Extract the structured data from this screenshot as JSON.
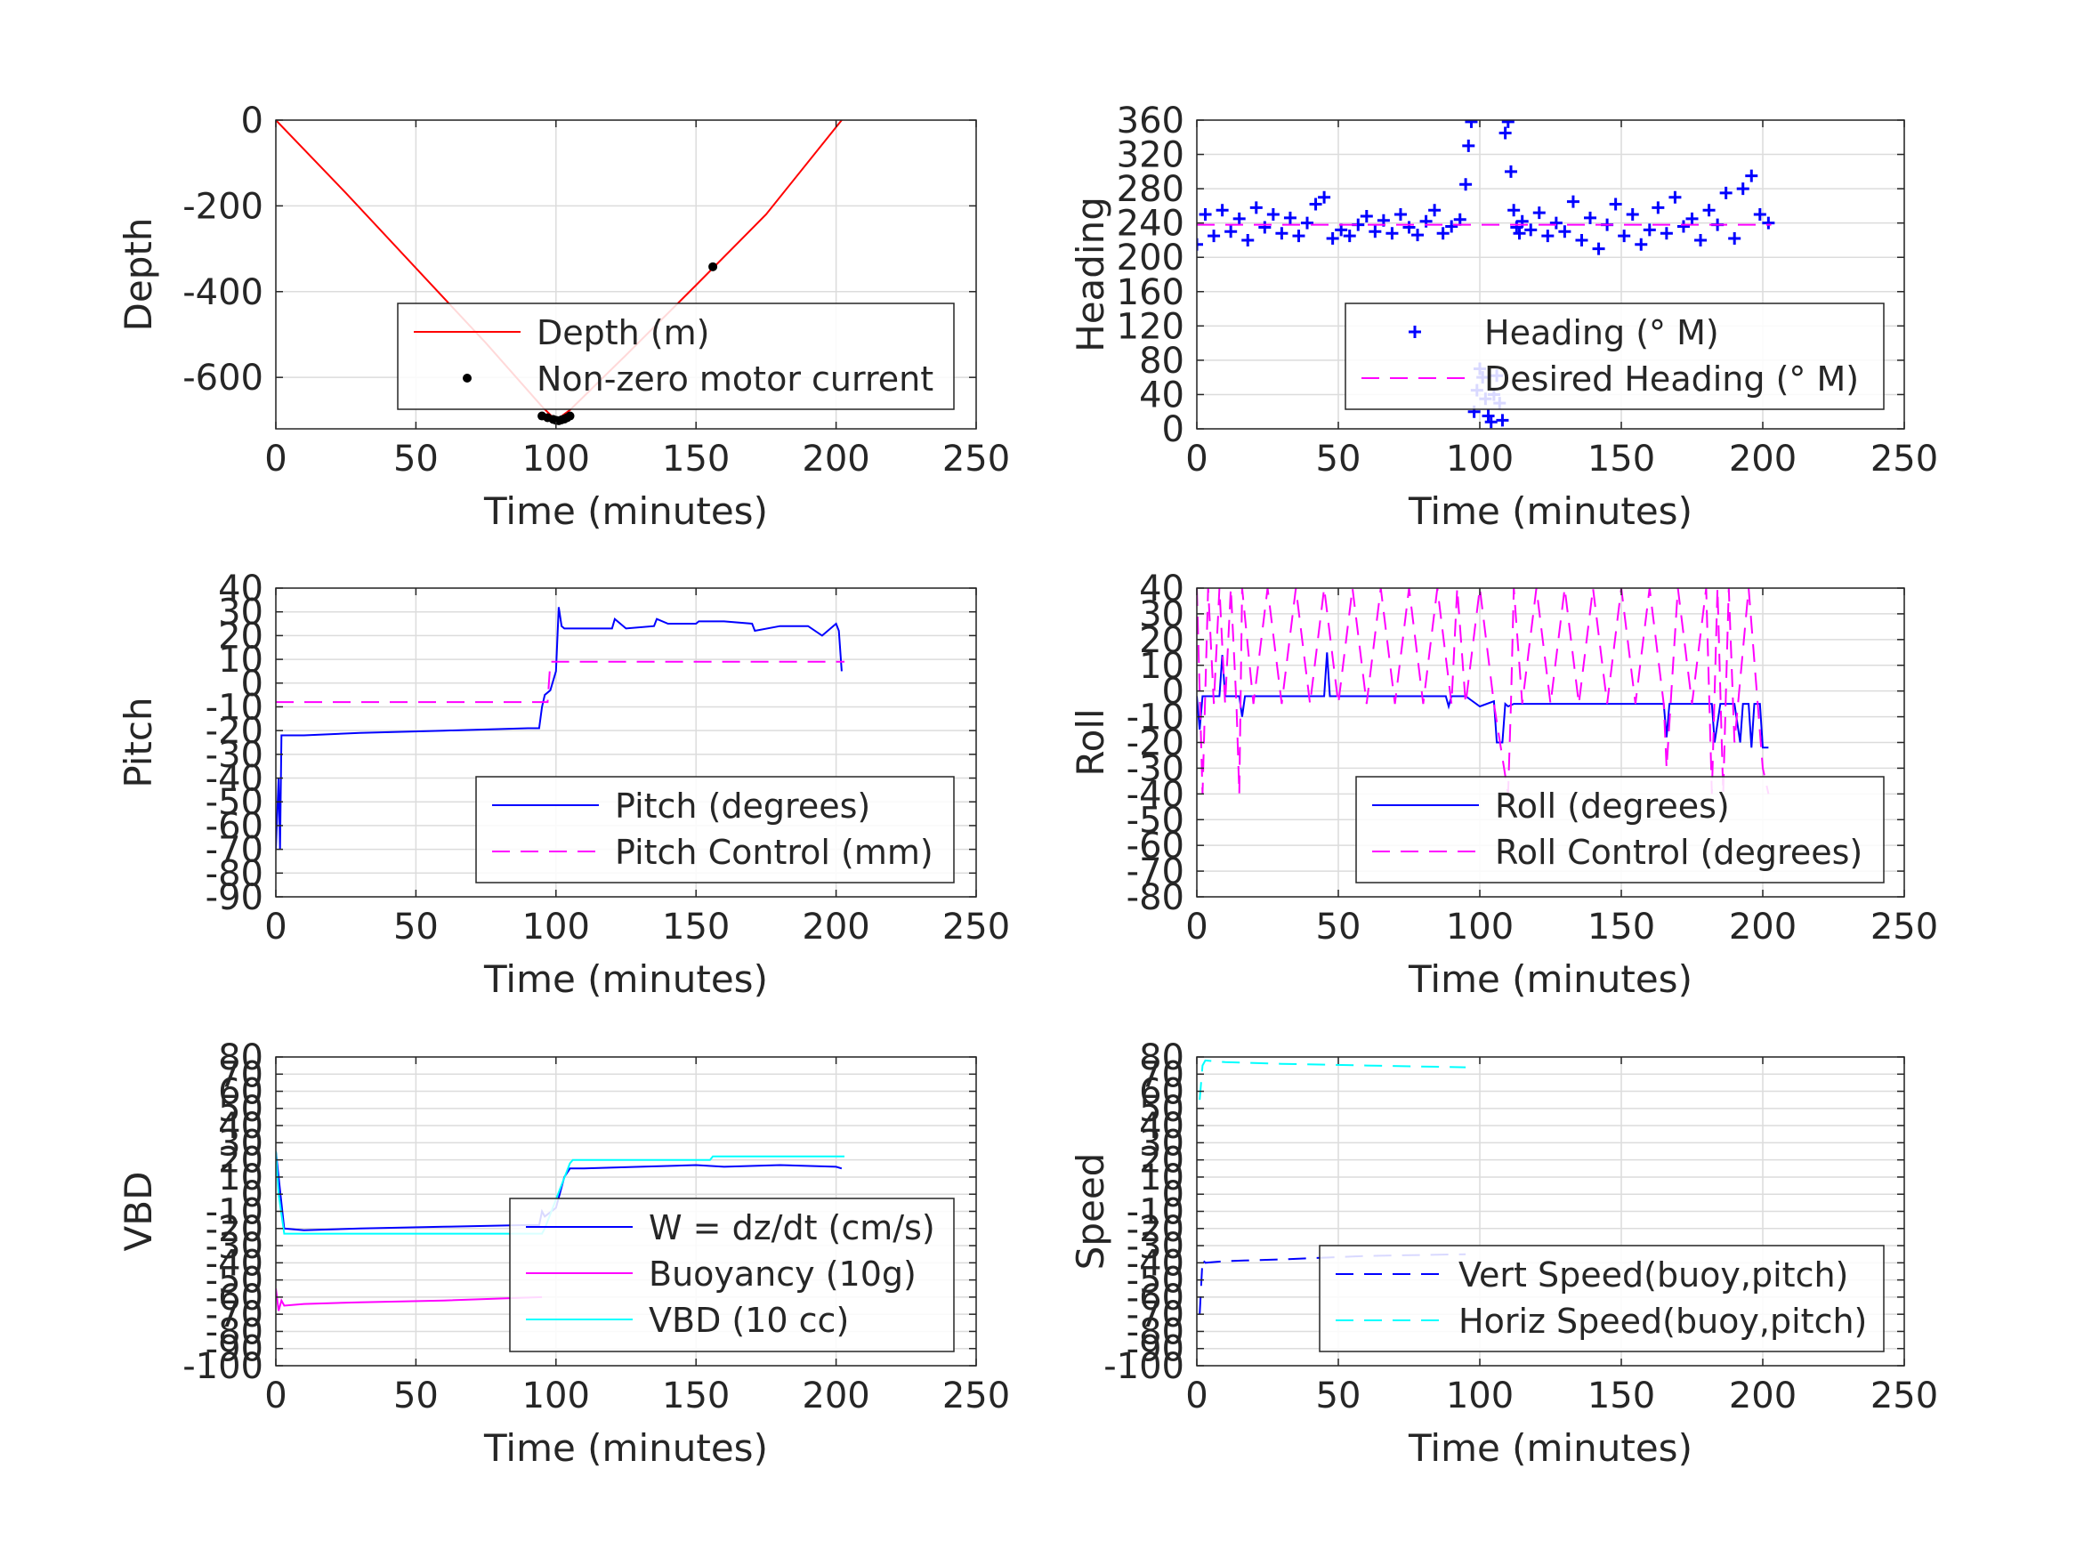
{
  "chart_data": [
    {
      "type": "line",
      "ylabel": "Depth",
      "xlabel": "Time (minutes)",
      "xlim": [
        0,
        250
      ],
      "ylim": [
        -720,
        0
      ],
      "xticks": [
        0,
        50,
        100,
        150,
        200,
        250
      ],
      "yticks": [
        0,
        -200,
        -400,
        -600
      ],
      "grid": true,
      "legend_position": "lower-right",
      "series": [
        {
          "name": "Depth (m)",
          "style": "solid",
          "color": "#ff0000",
          "x": [
            0,
            25,
            50,
            75,
            95,
            100,
            105,
            125,
            150,
            175,
            202
          ],
          "y": [
            0,
            -170,
            -345,
            -520,
            -668,
            -700,
            -676,
            -548,
            -385,
            -220,
            0
          ]
        },
        {
          "name": "Non-zero motor current",
          "style": "dots",
          "color": "#000000",
          "x": [
            95,
            97,
            99,
            100,
            101,
            102,
            103,
            104,
            105,
            156
          ],
          "y": [
            -690,
            -694,
            -698,
            -700,
            -701,
            -699,
            -697,
            -694,
            -690,
            -342
          ]
        }
      ]
    },
    {
      "type": "scatter",
      "ylabel": "Heading",
      "xlabel": "Time (minutes)",
      "xlim": [
        0,
        250
      ],
      "ylim": [
        0,
        360
      ],
      "xticks": [
        0,
        50,
        100,
        150,
        200,
        250
      ],
      "yticks": [
        0,
        40,
        80,
        120,
        160,
        200,
        240,
        280,
        320,
        360
      ],
      "grid": true,
      "legend_position": "lower-right",
      "series": [
        {
          "name": "Heading (° M)",
          "style": "plus",
          "color": "#0000ff",
          "x": [
            0,
            3,
            6,
            9,
            12,
            15,
            18,
            21,
            24,
            27,
            30,
            33,
            36,
            39,
            42,
            45,
            48,
            51,
            54,
            57,
            60,
            63,
            66,
            69,
            72,
            75,
            78,
            81,
            84,
            87,
            90,
            93,
            95,
            96,
            97,
            98,
            99,
            100,
            101,
            102,
            103,
            104,
            105,
            106,
            107,
            108,
            109,
            110,
            111,
            112,
            113,
            114,
            115,
            118,
            121,
            124,
            127,
            130,
            133,
            136,
            139,
            142,
            145,
            148,
            151,
            154,
            157,
            160,
            163,
            166,
            169,
            172,
            175,
            178,
            181,
            184,
            187,
            190,
            193,
            196,
            199,
            202
          ],
          "y": [
            215,
            250,
            225,
            255,
            230,
            245,
            220,
            258,
            235,
            250,
            228,
            246,
            225,
            240,
            262,
            270,
            222,
            232,
            225,
            238,
            248,
            230,
            243,
            228,
            250,
            235,
            226,
            242,
            255,
            228,
            236,
            244,
            285,
            330,
            358,
            20,
            45,
            70,
            60,
            35,
            15,
            8,
            40,
            62,
            30,
            10,
            345,
            358,
            300,
            255,
            235,
            228,
            242,
            232,
            252,
            225,
            240,
            230,
            265,
            220,
            246,
            210,
            238,
            262,
            225,
            250,
            215,
            232,
            258,
            228,
            270,
            236,
            245,
            220,
            255,
            238,
            275,
            222,
            280,
            295,
            250,
            240
          ]
        },
        {
          "name": "Desired Heading (° M)",
          "style": "dashed",
          "color": "#ff00ff",
          "x": [
            0,
            97,
            110,
            203
          ],
          "y": [
            238,
            238,
            238,
            238
          ]
        }
      ]
    },
    {
      "type": "line",
      "ylabel": "Pitch",
      "xlabel": "Time (minutes)",
      "xlim": [
        0,
        250
      ],
      "ylim": [
        -90,
        40
      ],
      "xticks": [
        0,
        50,
        100,
        150,
        200,
        250
      ],
      "yticks": [
        40,
        30,
        20,
        10,
        0,
        -10,
        -20,
        -30,
        -40,
        -50,
        -60,
        -70,
        -80,
        -90
      ],
      "grid": true,
      "legend_position": "lower-right",
      "series": [
        {
          "name": "Pitch (degrees)",
          "style": "solid",
          "color": "#0000ff",
          "x": [
            0,
            1,
            1.5,
            2,
            3,
            10,
            30,
            60,
            90,
            94,
            95,
            96,
            98,
            100,
            101,
            102,
            103,
            110,
            120,
            121,
            125,
            135,
            136,
            140,
            150,
            151,
            160,
            170,
            171,
            180,
            190,
            195,
            200,
            201,
            202
          ],
          "y": [
            -70,
            -40,
            -70,
            -22,
            -22,
            -22,
            -21,
            -20,
            -19,
            -19,
            -10,
            -5,
            -3,
            5,
            32,
            24,
            23,
            23,
            23,
            27,
            23,
            24,
            27,
            25,
            25,
            26,
            26,
            25,
            22,
            24,
            24,
            20,
            25,
            22,
            5
          ]
        },
        {
          "name": "Pitch Control (mm)",
          "style": "dashed",
          "color": "#ff00ff",
          "x": [
            0,
            97,
            98,
            203
          ],
          "y": [
            -8,
            -8,
            9,
            9
          ]
        }
      ]
    },
    {
      "type": "line",
      "ylabel": "Roll",
      "xlabel": "Time (minutes)",
      "xlim": [
        0,
        250
      ],
      "ylim": [
        -80,
        40
      ],
      "xticks": [
        0,
        50,
        100,
        150,
        200,
        250
      ],
      "yticks": [
        40,
        30,
        20,
        10,
        0,
        -10,
        -20,
        -30,
        -40,
        -50,
        -60,
        -70,
        -80
      ],
      "grid": true,
      "legend_position": "lower-right",
      "series": [
        {
          "name": "Roll (degrees)",
          "style": "solid",
          "color": "#0000ff",
          "x": [
            0,
            1,
            2,
            3,
            5,
            8,
            9,
            10,
            15,
            16,
            17,
            20,
            30,
            40,
            45,
            46,
            47,
            50,
            60,
            70,
            88,
            89,
            90,
            95,
            100,
            105,
            106,
            108,
            109,
            110,
            112,
            115,
            120,
            130,
            140,
            150,
            155,
            160,
            165,
            166,
            167,
            170,
            180,
            182,
            183,
            185,
            190,
            192,
            193,
            195,
            196,
            197,
            199,
            200,
            202
          ],
          "y": [
            -2,
            -15,
            -2,
            -2,
            -2,
            -2,
            14,
            -2,
            -2,
            -10,
            -2,
            -2,
            -2,
            -2,
            -2,
            15,
            -2,
            -2,
            -2,
            -2,
            -2,
            -6,
            -2,
            -2,
            -6,
            -4,
            -20,
            -20,
            -5,
            -6,
            -5,
            -5,
            -5,
            -5,
            -5,
            -5,
            -5,
            -5,
            -5,
            -18,
            -5,
            -5,
            -5,
            -5,
            -20,
            -5,
            -5,
            -20,
            -5,
            -5,
            -22,
            -5,
            -5,
            -22,
            -22
          ]
        },
        {
          "name": "Roll Control (degrees)",
          "style": "dashed",
          "color": "#ff00ff",
          "x": [
            0,
            2,
            4,
            6,
            8,
            10,
            12,
            14,
            15,
            16,
            20,
            25,
            30,
            35,
            40,
            45,
            50,
            55,
            60,
            65,
            70,
            75,
            80,
            85,
            90,
            92,
            95,
            100,
            105,
            110,
            111,
            112,
            115,
            120,
            125,
            130,
            135,
            140,
            145,
            150,
            155,
            160,
            165,
            166,
            170,
            175,
            180,
            182,
            184,
            186,
            188,
            190,
            195,
            200,
            202
          ],
          "y": [
            40,
            -40,
            40,
            -5,
            40,
            -5,
            40,
            -5,
            -40,
            40,
            -5,
            40,
            -5,
            40,
            -5,
            40,
            -5,
            40,
            -5,
            40,
            -5,
            40,
            -5,
            40,
            -5,
            40,
            -5,
            40,
            -5,
            -40,
            -5,
            40,
            -5,
            40,
            -5,
            40,
            -5,
            40,
            -5,
            40,
            -5,
            40,
            -5,
            -30,
            40,
            -5,
            40,
            -40,
            40,
            -40,
            40,
            -20,
            40,
            -30,
            -40
          ]
        }
      ]
    },
    {
      "type": "line",
      "ylabel": "VBD",
      "xlabel": "Time (minutes)",
      "xlim": [
        0,
        250
      ],
      "ylim": [
        -100,
        80
      ],
      "xticks": [
        0,
        50,
        100,
        150,
        200,
        250
      ],
      "yticks": [
        80,
        70,
        60,
        50,
        40,
        30,
        20,
        10,
        0,
        -10,
        -20,
        -30,
        -40,
        -50,
        -60,
        -70,
        -80,
        -90,
        -100
      ],
      "ytick_labels_overlap": true,
      "grid": true,
      "legend_position": "lower-right",
      "series": [
        {
          "name": "W = dz/dt (cm/s)",
          "style": "solid",
          "color": "#0000ff",
          "x": [
            0,
            1,
            3,
            10,
            30,
            60,
            90,
            94,
            95,
            96,
            100,
            103,
            105,
            110,
            130,
            150,
            160,
            180,
            200,
            202
          ],
          "y": [
            25,
            10,
            -20,
            -21,
            -20,
            -19,
            -18,
            -18,
            -10,
            -13,
            -8,
            10,
            15,
            15,
            16,
            17,
            16,
            17,
            16,
            15
          ]
        },
        {
          "name": "Buoyancy (10g)",
          "style": "solid",
          "color": "#ff00ff",
          "x": [
            0,
            1,
            2,
            3,
            10,
            30,
            60,
            95
          ],
          "y": [
            -55,
            -68,
            -62,
            -65,
            -64,
            -63,
            -62,
            -60
          ]
        },
        {
          "name": "VBD (10 cc)",
          "style": "solid",
          "color": "#00ffff",
          "x": [
            0,
            1,
            3,
            10,
            95,
            96,
            105,
            106,
            155,
            156,
            203
          ],
          "y": [
            25,
            0,
            -23,
            -23,
            -23,
            -20,
            18,
            20,
            20,
            22,
            22
          ]
        }
      ]
    },
    {
      "type": "line",
      "ylabel": "Speed",
      "xlabel": "Time (minutes)",
      "xlim": [
        0,
        250
      ],
      "ylim": [
        -100,
        80
      ],
      "xticks": [
        0,
        50,
        100,
        150,
        200,
        250
      ],
      "yticks": [
        80,
        70,
        60,
        50,
        40,
        30,
        20,
        10,
        0,
        -10,
        -20,
        -30,
        -40,
        -50,
        -60,
        -70,
        -80,
        -90,
        -100
      ],
      "ytick_labels_overlap": true,
      "grid": true,
      "legend_position": "lower-right",
      "series": [
        {
          "name": "Vert Speed(buoy,pitch)",
          "style": "dashed",
          "color": "#0000ff",
          "x": [
            1,
            2,
            3,
            10,
            30,
            60,
            95
          ],
          "y": [
            -70,
            -38,
            -40,
            -39,
            -38,
            -36,
            -35
          ]
        },
        {
          "name": "Horiz Speed(buoy,pitch)",
          "style": "dashed",
          "color": "#00ffff",
          "x": [
            1,
            2,
            3,
            10,
            30,
            60,
            95
          ],
          "y": [
            55,
            75,
            78,
            77,
            76,
            75,
            74
          ]
        }
      ]
    }
  ]
}
